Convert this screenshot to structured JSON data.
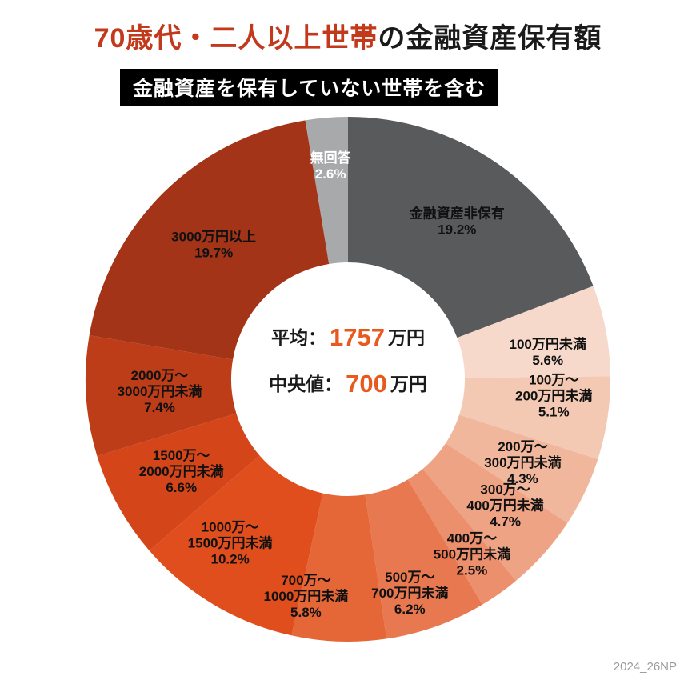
{
  "page": {
    "title_highlight": "70歳代・二人以上世帯",
    "title_rest": "の金融資産保有額",
    "subtitle_badge": "金融資産を保有していない世帯を含む",
    "watermark": "2024_26NP",
    "colors": {
      "title_accent": "#c2391b",
      "badge_bg": "#000000",
      "badge_text": "#ffffff",
      "number_accent": "#e8591d",
      "background": "#ffffff"
    }
  },
  "center": {
    "avg_label": "平均：",
    "avg_value": "1757",
    "avg_unit": "万円",
    "med_label": "中央値：",
    "med_value": "700",
    "med_unit": "万円"
  },
  "chart_data": {
    "type": "pie",
    "donut": true,
    "start_angle": "top",
    "direction": "clockwise",
    "title": "70歳代・二人以上世帯の金融資産保有額",
    "note": "金融資産を保有していない世帯を含む",
    "center_stats": {
      "average": "平均：1757万円",
      "median": "中央値：700万円"
    },
    "segments": [
      {
        "label": "金融資産非保有",
        "value": 19.2,
        "color": "#595a5c",
        "label_lines": [
          "金融資産非保有",
          "19.2%"
        ],
        "label_color": "#111111"
      },
      {
        "label": "100万円未満",
        "value": 5.6,
        "color": "#f7d9cb",
        "label_lines": [
          "100万円未満",
          "5.6%"
        ],
        "label_color": "#111111"
      },
      {
        "label": "100万〜200万円未満",
        "value": 5.1,
        "color": "#f4c9b4",
        "label_lines": [
          "100万〜",
          "200万円未満",
          "5.1%"
        ],
        "label_color": "#111111"
      },
      {
        "label": "200万〜300万円未満",
        "value": 4.3,
        "color": "#f1b79c",
        "label_lines": [
          "200万〜",
          "300万円未満",
          "4.3%"
        ],
        "label_color": "#111111"
      },
      {
        "label": "300万〜400万円未満",
        "value": 4.7,
        "color": "#eea385",
        "label_lines": [
          "300万〜",
          "400万円未満",
          "4.7%"
        ],
        "label_color": "#111111"
      },
      {
        "label": "400万〜500万円未満",
        "value": 2.5,
        "color": "#eb8f6c",
        "label_lines": [
          "400万〜",
          "500万円未満",
          "2.5%"
        ],
        "label_color": "#111111"
      },
      {
        "label": "500万〜700万円未満",
        "value": 6.2,
        "color": "#e87850",
        "label_lines": [
          "500万〜",
          "700万円未満",
          "6.2%"
        ],
        "label_color": "#111111"
      },
      {
        "label": "700万〜1000万円未満",
        "value": 5.8,
        "color": "#e56636",
        "label_lines": [
          "700万〜",
          "1000万円未満",
          "5.8%"
        ],
        "label_color": "#111111"
      },
      {
        "label": "1000万〜1500万円未満",
        "value": 10.2,
        "color": "#e14e1d",
        "label_lines": [
          "1000万〜",
          "1500万円未満",
          "10.2%"
        ],
        "label_color": "#111111"
      },
      {
        "label": "1500万〜2000万円未満",
        "value": 6.6,
        "color": "#d44619",
        "label_lines": [
          "1500万〜",
          "2000万円未満",
          "6.6%"
        ],
        "label_color": "#111111"
      },
      {
        "label": "2000万〜3000万円未満",
        "value": 7.4,
        "color": "#bd3d18",
        "label_lines": [
          "2000万〜",
          "3000万円未満",
          "7.4%"
        ],
        "label_color": "#111111"
      },
      {
        "label": "3000万円以上",
        "value": 19.7,
        "color": "#a43417",
        "label_lines": [
          "3000万円以上",
          "19.7%"
        ],
        "label_color": "#111111"
      },
      {
        "label": "無回答",
        "value": 2.6,
        "color": "#a8a9ab",
        "label_lines": [
          "無回答",
          "2.6%"
        ],
        "label_color": "#ffffff"
      }
    ]
  }
}
